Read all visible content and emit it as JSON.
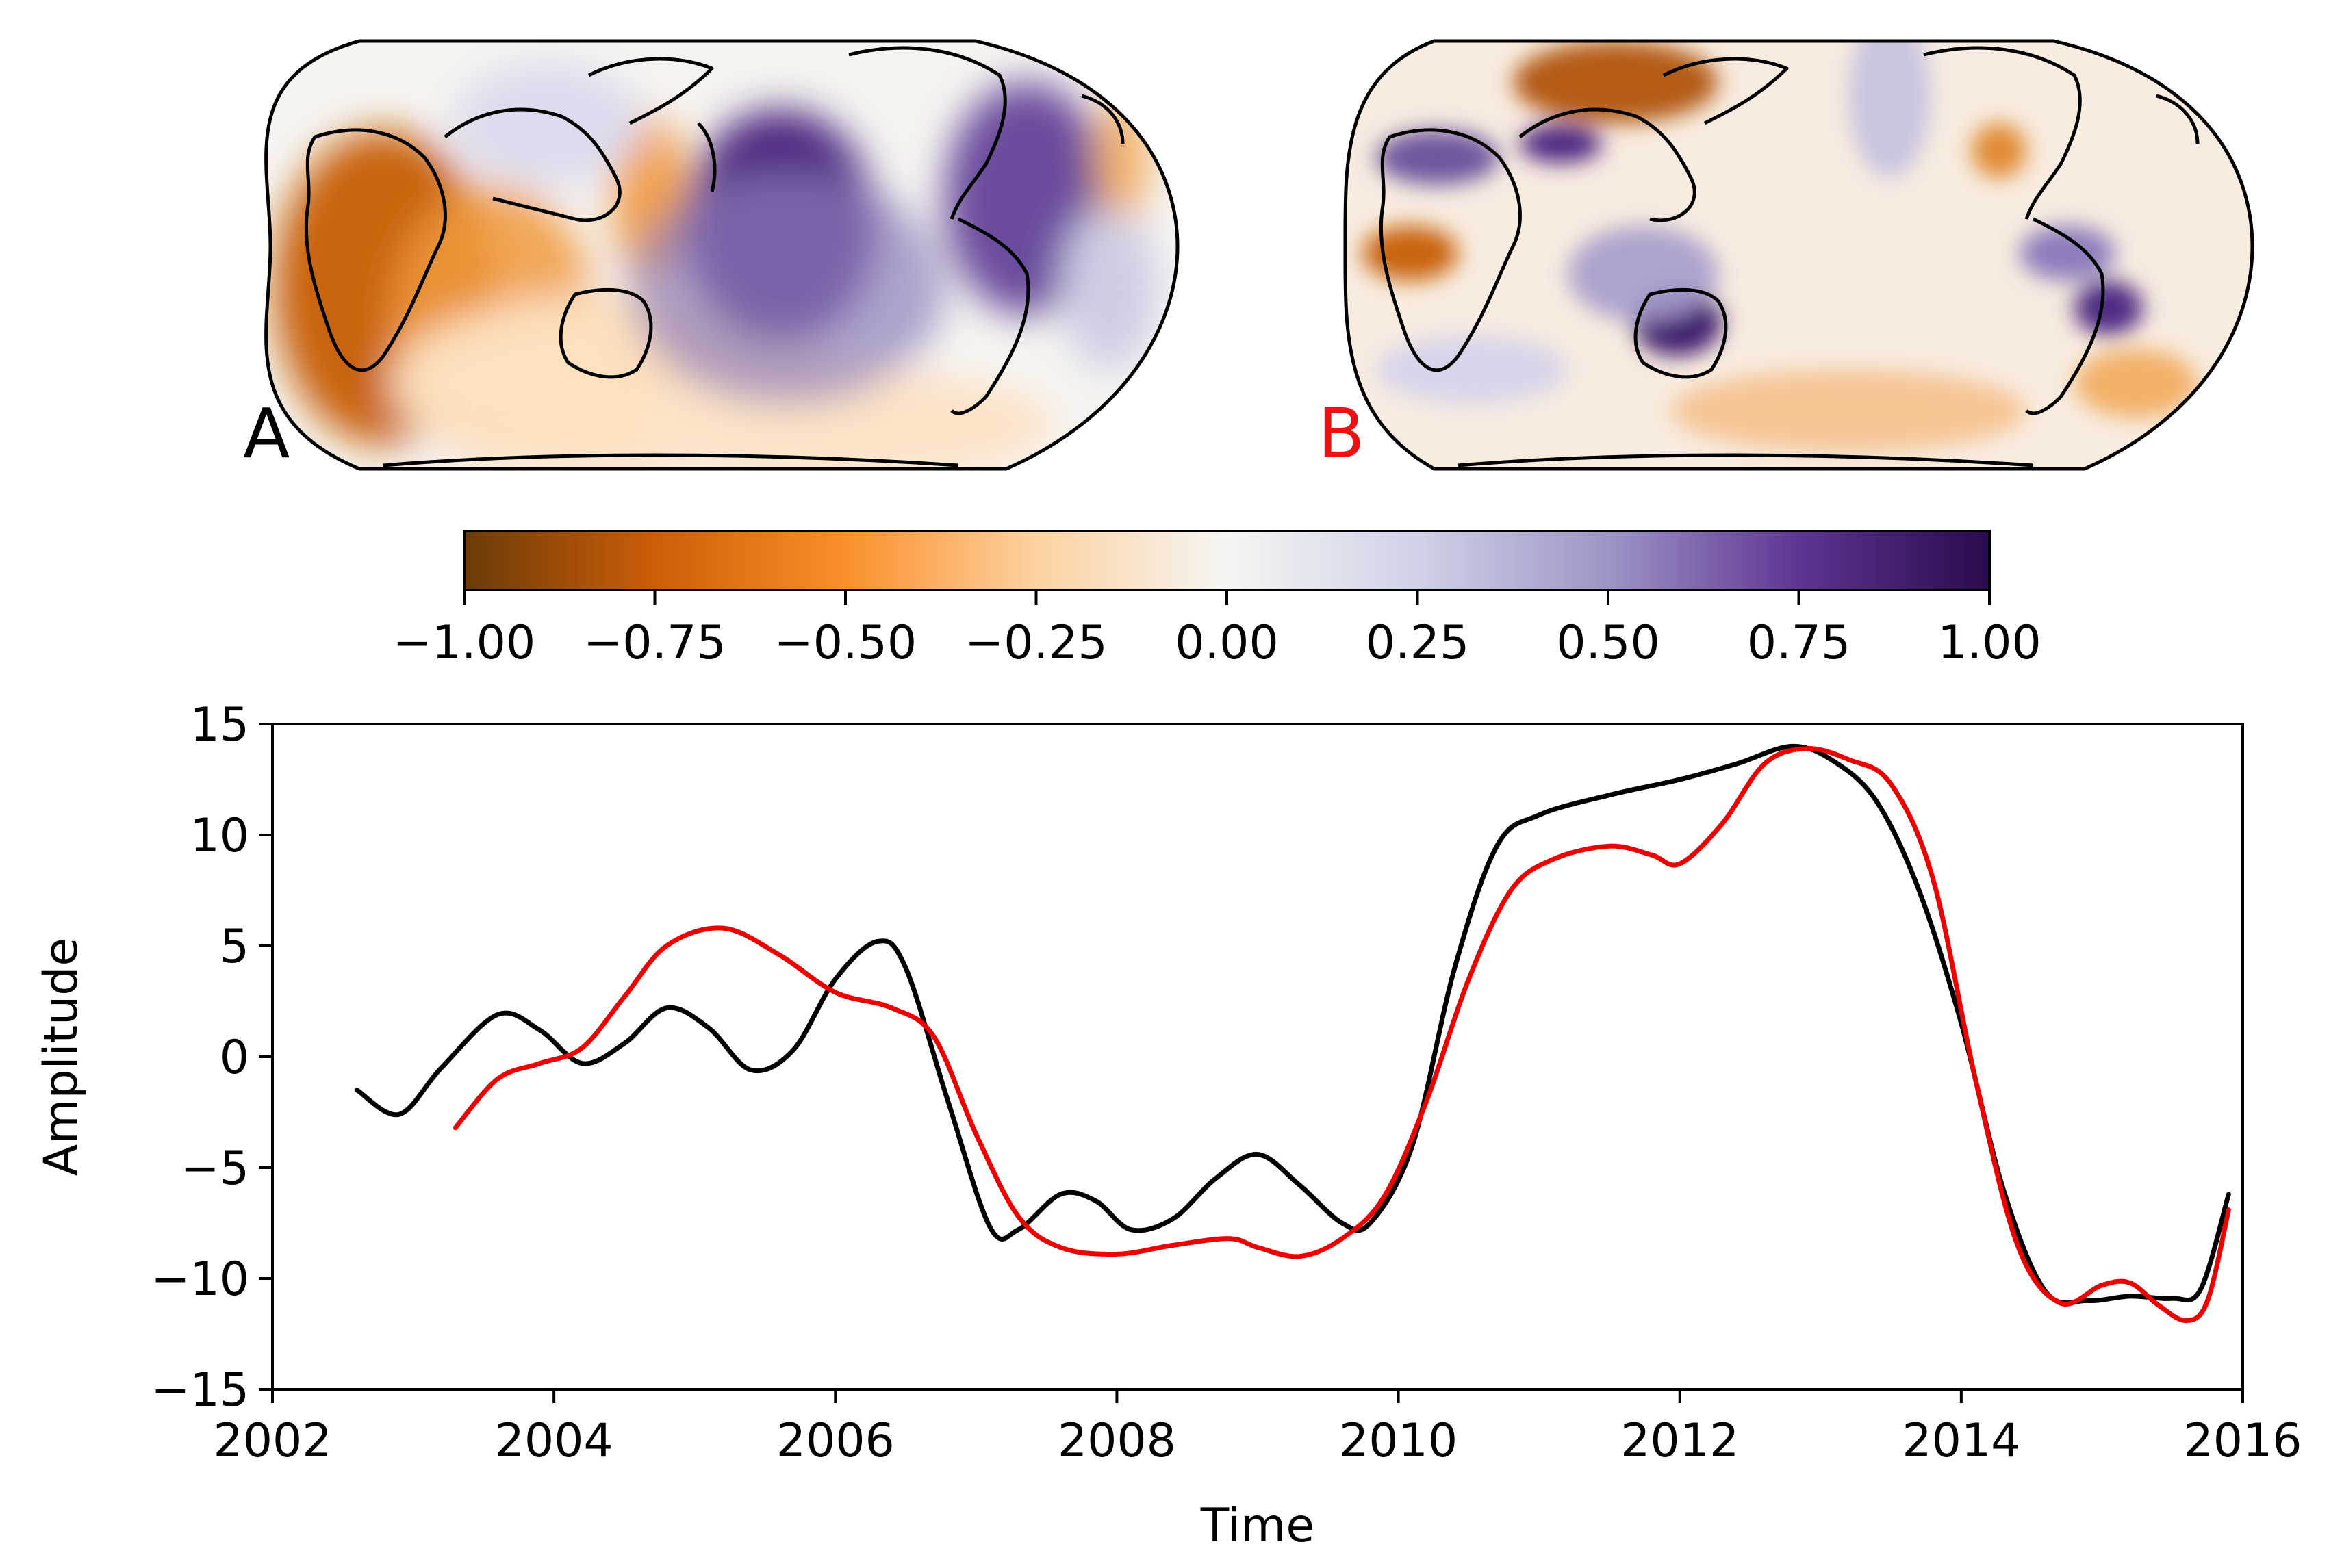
{
  "maps": [
    {
      "label": "A",
      "label_color": "#000000"
    },
    {
      "label": "B",
      "label_color": "#ee1111"
    }
  ],
  "colorbar": {
    "ticks": [
      "−1.00",
      "−0.75",
      "−0.50",
      "−0.25",
      "0.00",
      "0.25",
      "0.50",
      "0.75",
      "1.00"
    ],
    "range": [
      -1,
      1
    ],
    "colormap": "PuOr",
    "colors": [
      "#6b3a08",
      "#cc5e08",
      "#f9902a",
      "#fdd2a0",
      "#f5f5f3",
      "#cfd2e8",
      "#9e95c6",
      "#5e3492",
      "#2a0b4c"
    ]
  },
  "chart_data": {
    "type": "line",
    "title": "",
    "xlabel": "Time",
    "ylabel": "Amplitude",
    "xlim": [
      2002,
      2016
    ],
    "ylim": [
      -15,
      15
    ],
    "xticks": [
      "2002",
      "2004",
      "2006",
      "2008",
      "2010",
      "2012",
      "2014",
      "2016"
    ],
    "yticks": [
      "15",
      "10",
      "5",
      "0",
      "−5",
      "−10",
      "−15"
    ],
    "series": [
      {
        "name": "A",
        "color": "#000000",
        "x": [
          2002.6,
          2002.9,
          2003.2,
          2003.6,
          2003.9,
          2004.2,
          2004.5,
          2004.8,
          2005.1,
          2005.4,
          2005.7,
          2006.0,
          2006.3,
          2006.5,
          2006.8,
          2007.1,
          2007.3,
          2007.6,
          2007.85,
          2008.1,
          2008.4,
          2008.7,
          2009.0,
          2009.3,
          2009.6,
          2009.8,
          2010.1,
          2010.4,
          2010.7,
          2011.0,
          2011.5,
          2012.0,
          2012.4,
          2012.8,
          2013.1,
          2013.4,
          2013.7,
          2014.0,
          2014.3,
          2014.6,
          2014.9,
          2015.2,
          2015.5,
          2015.7,
          2015.9
        ],
        "values": [
          -1.5,
          -2.6,
          -0.5,
          1.9,
          1.2,
          -0.3,
          0.6,
          2.2,
          1.3,
          -0.6,
          0.3,
          3.5,
          5.2,
          4.0,
          -2.0,
          -7.7,
          -7.8,
          -6.2,
          -6.5,
          -7.8,
          -7.3,
          -5.5,
          -4.4,
          -5.8,
          -7.5,
          -7.5,
          -4.0,
          4.0,
          9.5,
          10.9,
          11.8,
          12.5,
          13.2,
          14.0,
          13.3,
          11.5,
          7.5,
          1.5,
          -6.0,
          -10.6,
          -11.0,
          -10.8,
          -10.9,
          -10.5,
          -6.2
        ]
      },
      {
        "name": "B",
        "color": "#ee0000",
        "x": [
          2003.3,
          2003.6,
          2003.9,
          2004.2,
          2004.5,
          2004.8,
          2005.2,
          2005.6,
          2006.0,
          2006.4,
          2006.7,
          2007.0,
          2007.3,
          2007.6,
          2008.0,
          2008.4,
          2008.8,
          2009.0,
          2009.3,
          2009.6,
          2009.9,
          2010.2,
          2010.5,
          2010.8,
          2011.1,
          2011.5,
          2011.8,
          2012.0,
          2012.3,
          2012.6,
          2012.9,
          2013.2,
          2013.5,
          2013.8,
          2014.1,
          2014.4,
          2014.7,
          2015.0,
          2015.2,
          2015.4,
          2015.6,
          2015.75,
          2015.9
        ],
        "values": [
          -3.2,
          -1.0,
          -0.3,
          0.4,
          2.7,
          5.0,
          5.8,
          4.6,
          2.9,
          2.2,
          0.9,
          -3.5,
          -7.2,
          -8.6,
          -8.9,
          -8.5,
          -8.2,
          -8.6,
          -9.0,
          -8.2,
          -6.3,
          -2.0,
          3.5,
          7.5,
          8.9,
          9.5,
          9.1,
          8.7,
          10.5,
          13.2,
          13.9,
          13.4,
          12.3,
          8.0,
          -1.0,
          -8.5,
          -11.1,
          -10.3,
          -10.2,
          -11.2,
          -11.9,
          -11.0,
          -6.9
        ]
      }
    ]
  }
}
